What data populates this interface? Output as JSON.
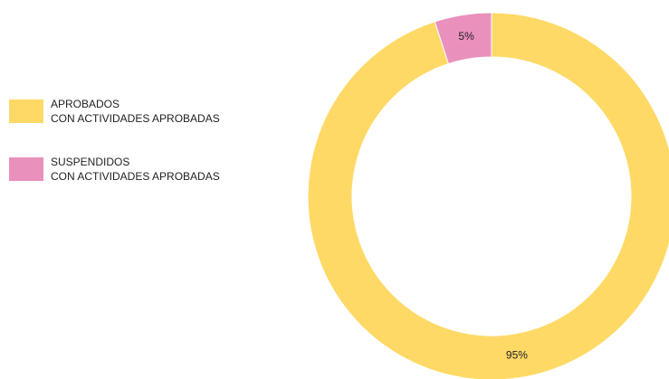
{
  "chart_data": {
    "type": "donut",
    "categories": [
      "APROBADOS\nCON ACTIVIDADES APROBADAS",
      "SUSPENDIDOS\nCON ACTIVIDADES APROBADAS"
    ],
    "values": [
      95,
      5
    ],
    "value_labels": [
      "95%",
      "5%"
    ],
    "colors": [
      "#ffd966",
      "#ea90bd"
    ],
    "legend": "left"
  }
}
